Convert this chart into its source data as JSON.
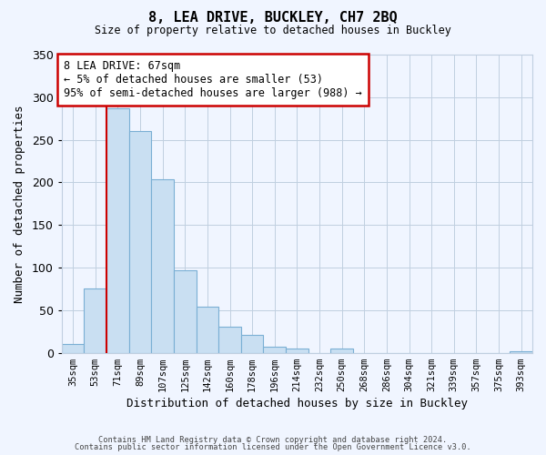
{
  "title": "8, LEA DRIVE, BUCKLEY, CH7 2BQ",
  "subtitle": "Size of property relative to detached houses in Buckley",
  "xlabel": "Distribution of detached houses by size in Buckley",
  "ylabel": "Number of detached properties",
  "bar_labels": [
    "35sqm",
    "53sqm",
    "71sqm",
    "89sqm",
    "107sqm",
    "125sqm",
    "142sqm",
    "160sqm",
    "178sqm",
    "196sqm",
    "214sqm",
    "232sqm",
    "250sqm",
    "268sqm",
    "286sqm",
    "304sqm",
    "321sqm",
    "339sqm",
    "357sqm",
    "375sqm",
    "393sqm"
  ],
  "bar_values": [
    10,
    75,
    287,
    260,
    204,
    97,
    54,
    31,
    21,
    7,
    5,
    0,
    5,
    0,
    0,
    0,
    0,
    0,
    0,
    0,
    2
  ],
  "bar_color": "#c9dff2",
  "bar_edge_color": "#7aafd4",
  "vline_x_index": 2,
  "vline_color": "#cc0000",
  "annotation_title": "8 LEA DRIVE: 67sqm",
  "annotation_line1": "← 5% of detached houses are smaller (53)",
  "annotation_line2": "95% of semi-detached houses are larger (988) →",
  "annotation_box_color": "#ffffff",
  "annotation_box_edge": "#cc0000",
  "ylim": [
    0,
    350
  ],
  "yticks": [
    0,
    50,
    100,
    150,
    200,
    250,
    300,
    350
  ],
  "footer_line1": "Contains HM Land Registry data © Crown copyright and database right 2024.",
  "footer_line2": "Contains public sector information licensed under the Open Government Licence v3.0.",
  "background_color": "#f0f5ff",
  "grid_color": "#c0cfe0",
  "font_family": "monospace"
}
